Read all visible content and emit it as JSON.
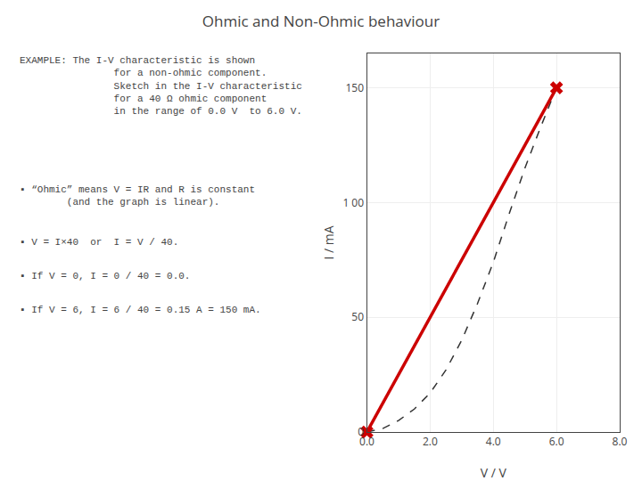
{
  "chart_data": {
    "type": "line",
    "title": "Ohmic and Non-Ohmic behaviour",
    "xlabel": "V / V",
    "ylabel": "I / mA",
    "xlim": [
      0,
      8.0
    ],
    "ylim": [
      0,
      165
    ],
    "xticks": [
      {
        "value": 0.0,
        "label": "0.0"
      },
      {
        "value": 2.0,
        "label": "2.0"
      },
      {
        "value": 4.0,
        "label": "4.0"
      },
      {
        "value": 6.0,
        "label": "6.0"
      },
      {
        "value": 8.0,
        "label": "8.0"
      }
    ],
    "yticks": [
      0,
      50,
      {
        "value": 100,
        "label": "1 00"
      },
      150
    ],
    "grid": true,
    "series": [
      {
        "color": "#333333",
        "line_style": "dashed",
        "x": [
          0,
          0.5,
          1,
          1.5,
          2,
          2.5,
          3,
          3.5,
          4,
          4.5,
          5,
          5.5,
          6
        ],
        "values": [
          0,
          1.5,
          5,
          10,
          17,
          27,
          40,
          56,
          74,
          95,
          115,
          133,
          150
        ]
      },
      {
        "color": "#CC0000",
        "line_style": "solid",
        "marker": "x",
        "x": [
          0,
          6
        ],
        "values": [
          0,
          150
        ]
      }
    ],
    "annotations": [
      "EXAMPLE: The I-V characteristic is shown\n                for a non-ohmic component.\n                Sketch in the I-V characteristic\n                for a 40 Ω ohmic component\n                in the range of 0.0 V  to 6.0 V.",
      "▪ “Ohmic” means V = IR and R is constant\n        (and the graph is linear).",
      "▪ V = I×40  or  I = V / 40.",
      "▪ If V = 0, I = 0 / 40 = 0.0.",
      "▪ If V = 6, I = 6 / 40 = 0.15 A = 150 mA."
    ]
  }
}
